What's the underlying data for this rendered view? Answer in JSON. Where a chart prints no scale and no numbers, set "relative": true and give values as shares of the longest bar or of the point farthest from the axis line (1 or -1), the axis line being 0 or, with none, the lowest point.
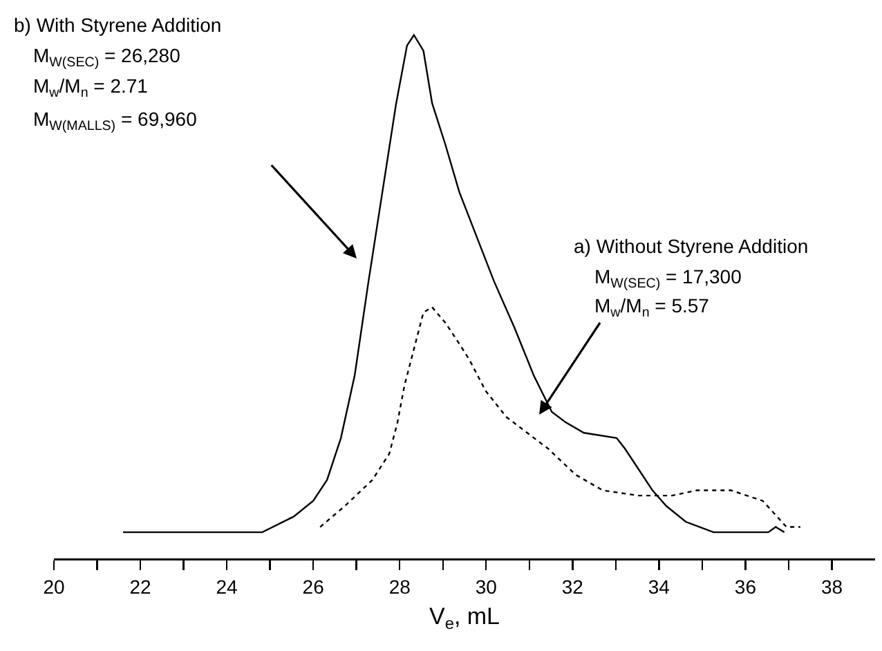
{
  "chart_data": {
    "type": "line",
    "relative": true,
    "xlabel": "V$_{e}$, mL",
    "xlim": [
      20,
      39
    ],
    "xticks": [
      20,
      {
        "value": 21,
        "label": null
      },
      22,
      {
        "value": 23,
        "label": null
      },
      24,
      {
        "value": 25,
        "label": null
      },
      26,
      {
        "value": 27,
        "label": null
      },
      28,
      {
        "value": 29,
        "label": null
      },
      30,
      {
        "value": 31,
        "label": null
      },
      32,
      {
        "value": 33,
        "label": null
      },
      34,
      {
        "value": 35,
        "label": null
      },
      36,
      {
        "value": 37,
        "label": null
      },
      38
    ],
    "grid": false,
    "series": [
      {
        "color": "#000000",
        "line_style": "solid",
        "x": [
          21.6,
          23.9,
          24.82,
          25.55,
          26.0,
          26.32,
          26.64,
          26.96,
          27.28,
          27.6,
          27.92,
          28.17,
          28.33,
          28.55,
          28.75,
          29.06,
          29.38,
          30.18,
          30.66,
          31.1,
          31.52,
          31.84,
          32.26,
          33.02,
          33.21,
          33.53,
          33.85,
          34.17,
          34.62,
          35.26,
          36.53,
          36.7,
          36.9
        ],
        "values": [
          0.05,
          0.05,
          0.05,
          0.08,
          0.11,
          0.15,
          0.23,
          0.35,
          0.53,
          0.7,
          0.87,
          0.98,
          1,
          0.97,
          0.87,
          0.79,
          0.7,
          0.53,
          0.44,
          0.35,
          0.28,
          0.26,
          0.24,
          0.23,
          0.21,
          0.17,
          0.13,
          0.1,
          0.07,
          0.05,
          0.05,
          0.06,
          0.05
        ]
      },
      {
        "color": "#000000",
        "line_style": "dotted",
        "x": [
          26.16,
          26.73,
          27.37,
          27.76,
          27.95,
          28.11,
          28.33,
          28.55,
          28.75,
          29.06,
          29.38,
          29.61,
          29.99,
          30.47,
          30.95,
          31.43,
          32.07,
          32.7,
          33.53,
          34.3,
          34.87,
          35.67,
          36.4,
          36.95,
          37.27
        ],
        "values": [
          0.06,
          0.1,
          0.15,
          0.2,
          0.26,
          0.33,
          0.4,
          0.47,
          0.48,
          0.45,
          0.41,
          0.38,
          0.32,
          0.27,
          0.24,
          0.21,
          0.16,
          0.13,
          0.12,
          0.12,
          0.13,
          0.13,
          0.11,
          0.06,
          0.06
        ]
      }
    ],
    "annotations": [
      "b) With Styrene Addition",
      "M$_{W(SEC)}$ = 26,280",
      "M$_{w}$/M$_{n}$ = 2.71",
      "M$_{W(MALLS)}$ = 69,960",
      "a) Without Styrene Addition",
      "M$_{W(SEC)}$ = 17,300",
      "M$_{w}$/M$_{n}$ = 5.57"
    ]
  }
}
